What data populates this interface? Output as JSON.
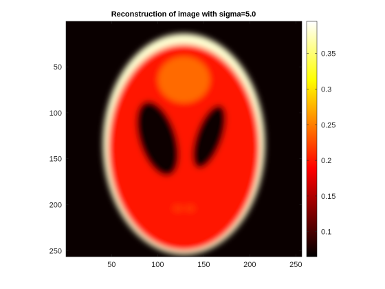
{
  "chart_data": {
    "type": "heatmap",
    "title": "Reconstruction of image with sigma=5.0",
    "image_size": [
      256,
      256
    ],
    "xlim": [
      0.5,
      256.5
    ],
    "ylim": [
      0.5,
      256.5
    ],
    "y_direction": "reversed",
    "x_ticks": [
      50,
      100,
      150,
      200,
      250
    ],
    "y_ticks": [
      50,
      100,
      150,
      200,
      250
    ],
    "colormap": "hot",
    "clim": [
      0.065,
      0.395
    ],
    "colorbar": {
      "placement": "right",
      "ticks": [
        0.1,
        0.15,
        0.2,
        0.25,
        0.3,
        0.35
      ]
    },
    "phantom": "Shepp-Logan",
    "blur_sigma": 5.0,
    "approx_region_values": {
      "background": 0.07,
      "skull_rim": 0.38,
      "brain_interior": 0.2,
      "upper_blob": 0.24,
      "dark_ellipses": 0.07
    }
  }
}
